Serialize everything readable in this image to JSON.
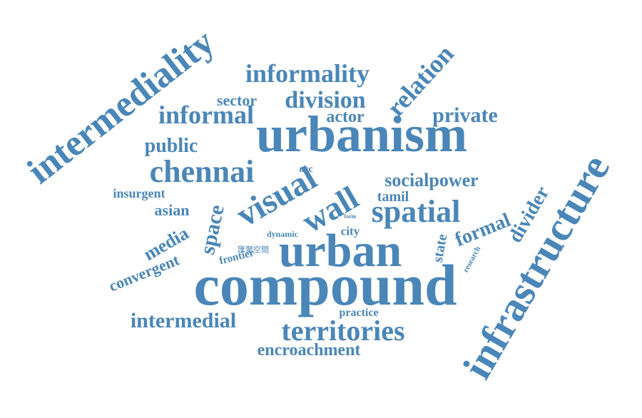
{
  "word_cloud": {
    "color": "#4a86b8",
    "background": "#ffffff",
    "words": [
      {
        "name": "word-urbanism",
        "text": "urbanism"
      },
      {
        "name": "word-compound",
        "text": "compound"
      },
      {
        "name": "word-urban",
        "text": "urban"
      },
      {
        "name": "word-infrastructure",
        "text": "infrastructure"
      },
      {
        "name": "word-intermediality",
        "text": "intermediality"
      },
      {
        "name": "word-visual",
        "text": "visual"
      },
      {
        "name": "word-wall",
        "text": "wall"
      },
      {
        "name": "word-spatial",
        "text": "spatial"
      },
      {
        "name": "word-territories",
        "text": "territories"
      },
      {
        "name": "word-chennai",
        "text": "chennai"
      },
      {
        "name": "word-informality",
        "text": "informality"
      },
      {
        "name": "word-relation",
        "text": "relation"
      },
      {
        "name": "word-informal",
        "text": "informal"
      },
      {
        "name": "word-division",
        "text": "division"
      },
      {
        "name": "word-private",
        "text": "private"
      },
      {
        "name": "word-intermedial",
        "text": "intermedial"
      },
      {
        "name": "word-encroachment",
        "text": "encroachment"
      },
      {
        "name": "word-socialpower",
        "text": "socialpower"
      },
      {
        "name": "word-public",
        "text": "public"
      },
      {
        "name": "word-sector",
        "text": "sector"
      },
      {
        "name": "word-actor",
        "text": "actor"
      },
      {
        "name": "word-space",
        "text": "space"
      },
      {
        "name": "word-formal",
        "text": "formal"
      },
      {
        "name": "word-divider",
        "text": "divider"
      },
      {
        "name": "word-media",
        "text": "media"
      },
      {
        "name": "word-convergent",
        "text": "convergent"
      },
      {
        "name": "word-asian",
        "text": "asian"
      },
      {
        "name": "word-insurgent",
        "text": "insurgent"
      },
      {
        "name": "word-tamil",
        "text": "tamil"
      },
      {
        "name": "word-state",
        "text": "state"
      },
      {
        "name": "word-practice",
        "text": "practice"
      },
      {
        "name": "word-frontier",
        "text": "frontier"
      },
      {
        "name": "word-city",
        "text": "city"
      },
      {
        "name": "word-dynamic",
        "text": "dynamic"
      },
      {
        "name": "word-acc",
        "text": "acc"
      },
      {
        "name": "word-research",
        "text": "research"
      },
      {
        "name": "word-form",
        "text": "form"
      },
      {
        "name": "word-chinese-space",
        "text": "匯聚空間"
      }
    ]
  }
}
